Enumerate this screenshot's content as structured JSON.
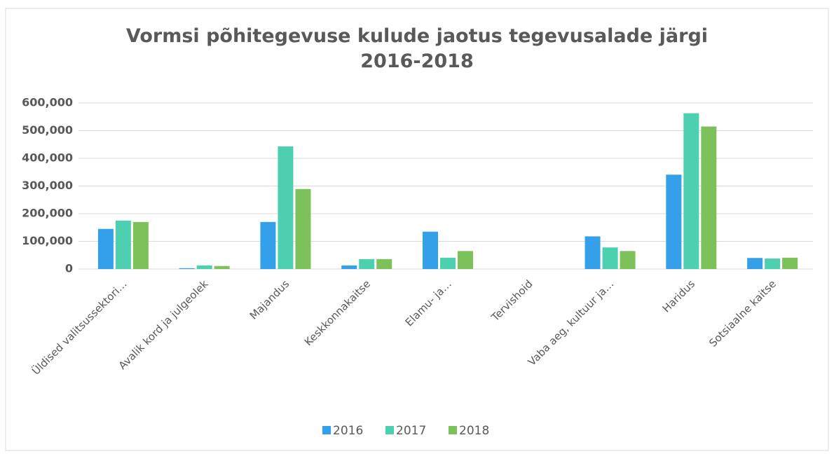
{
  "chart_data": {
    "type": "bar",
    "title": "Vormsi põhitegevuse kulude jaotus tegevusalade järgi",
    "subtitle": "2016-2018",
    "categories": [
      "Üldised valitsussektori…",
      "Avalik kord ja julgeolek",
      "Majandus",
      "Keskkonnakaitse",
      "Elamu- ja…",
      "Tervishoid",
      "Vaba aeg, kultuur ja…",
      "Haridus",
      "Sotsiaalne kaitse"
    ],
    "series": [
      {
        "name": "2016",
        "color": "#35a0ea",
        "values": [
          145000,
          3000,
          170000,
          13000,
          135000,
          0,
          118000,
          341000,
          40000
        ]
      },
      {
        "name": "2017",
        "color": "#4dd0b0",
        "values": [
          175000,
          13000,
          443000,
          36000,
          41000,
          0,
          78000,
          563000,
          38000
        ]
      },
      {
        "name": "2018",
        "color": "#7dc15a",
        "values": [
          170000,
          11000,
          289000,
          36000,
          65000,
          0,
          65000,
          515000,
          41000
        ]
      }
    ],
    "ylim": [
      0,
      600000
    ],
    "yticks": [
      0,
      {
        "value": 100000,
        "label": "100,000"
      },
      {
        "value": 200000,
        "label": "200,000"
      },
      {
        "value": 300000,
        "label": "300,000"
      },
      {
        "value": 400000,
        "label": "400,000"
      },
      {
        "value": 500000,
        "label": "500,000"
      },
      {
        "value": 600000,
        "label": "600,000"
      }
    ],
    "grid": true,
    "legend": "bottom"
  }
}
